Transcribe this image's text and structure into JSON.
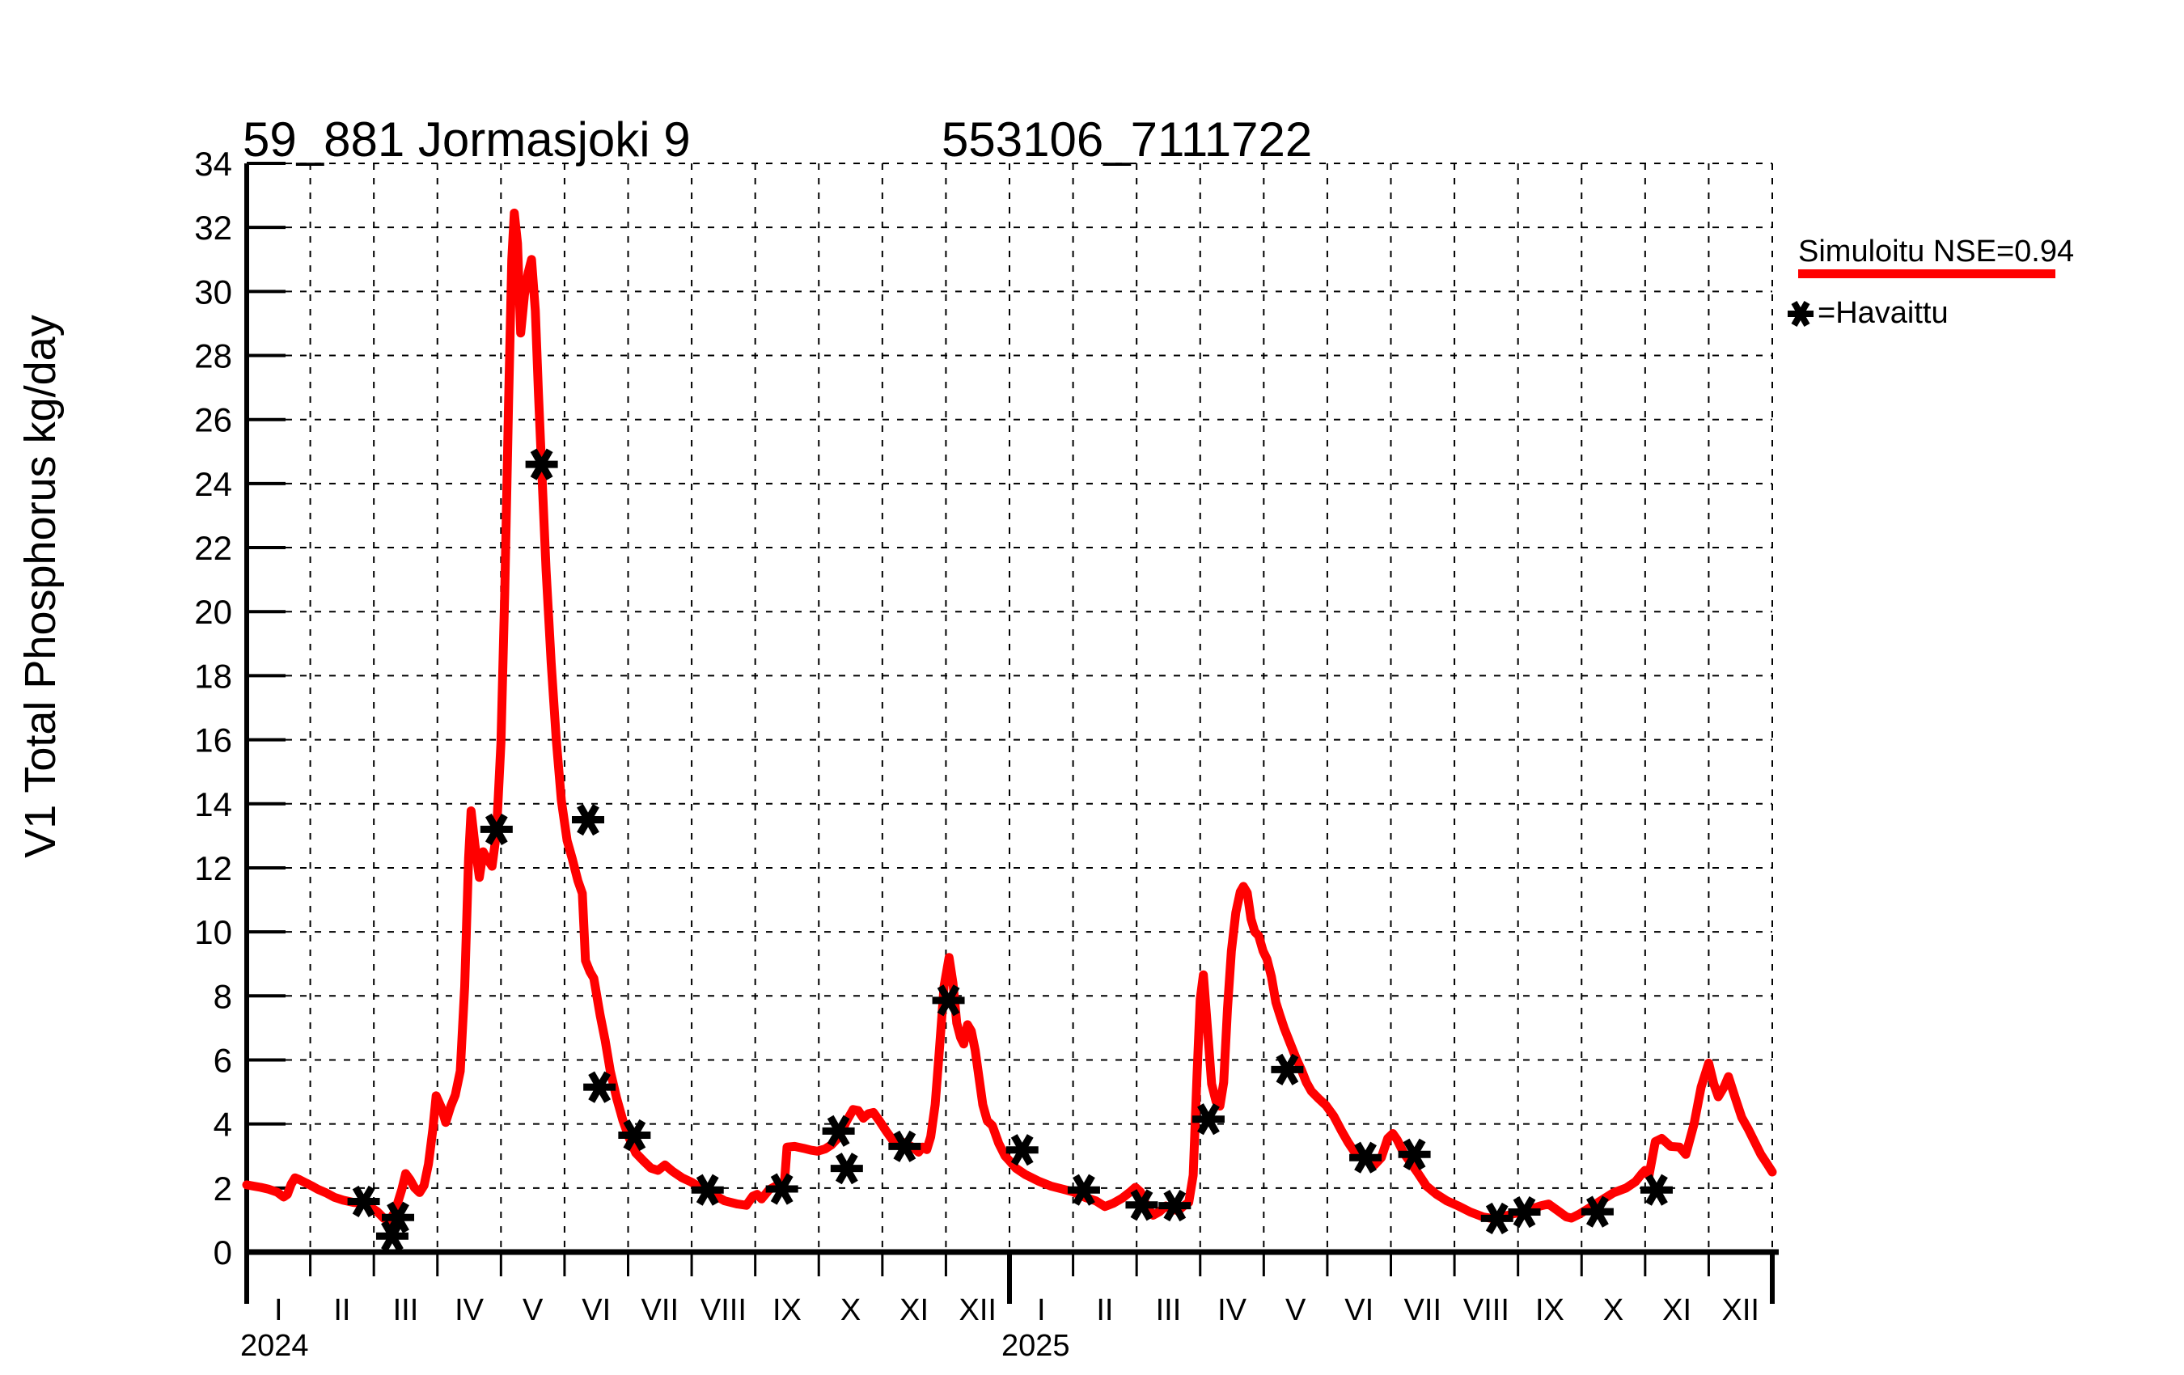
{
  "titles": {
    "station": "59_881 Jormasjoki 9",
    "coordinates": "553106_7111722"
  },
  "y_axis": {
    "label": "V1 Total Phosphorus kg/day",
    "ticks": [
      0,
      2,
      4,
      6,
      8,
      10,
      12,
      14,
      16,
      18,
      20,
      22,
      24,
      26,
      28,
      30,
      32,
      34
    ]
  },
  "x_axis": {
    "month_labels": [
      "I",
      "II",
      "III",
      "IV",
      "V",
      "VI",
      "VII",
      "VIII",
      "IX",
      "X",
      "XI",
      "XII"
    ],
    "years": [
      "2024",
      "2025"
    ]
  },
  "legend": {
    "simulated_label": "Simuloitu NSE=0.94",
    "observed_label": "=Havaittu",
    "simulated_color": "#ff0000",
    "observed_color": "#000000",
    "observed_marker": "asterisk"
  },
  "chart_data": {
    "type": "line",
    "title": "59_881 Jormasjoki 9  553106_7111722",
    "ylabel": "V1 Total Phosphorus kg/day",
    "xlabel": "months I-XII of 2024 and 2025",
    "ylim": [
      0,
      34
    ],
    "y_tick_step": 2,
    "x_months_range": [
      0,
      24
    ],
    "grid": true,
    "legend_position": "outside-right-top",
    "series": [
      {
        "name": "Simuloitu NSE=0.94",
        "type": "line",
        "color": "#ff0000",
        "points": [
          [
            0.0,
            2.1
          ],
          [
            0.1,
            2.06
          ],
          [
            0.22,
            2.02
          ],
          [
            0.35,
            1.96
          ],
          [
            0.48,
            1.87
          ],
          [
            0.58,
            1.72
          ],
          [
            0.64,
            1.8
          ],
          [
            0.7,
            2.12
          ],
          [
            0.76,
            2.32
          ],
          [
            0.83,
            2.26
          ],
          [
            0.92,
            2.17
          ],
          [
            1.02,
            2.07
          ],
          [
            1.12,
            1.96
          ],
          [
            1.25,
            1.85
          ],
          [
            1.38,
            1.71
          ],
          [
            1.52,
            1.62
          ],
          [
            1.68,
            1.55
          ],
          [
            1.84,
            1.52
          ],
          [
            1.95,
            1.4
          ],
          [
            2.05,
            1.27
          ],
          [
            2.16,
            1.05
          ],
          [
            2.25,
            1.0
          ],
          [
            2.33,
            1.25
          ],
          [
            2.44,
            1.95
          ],
          [
            2.5,
            2.45
          ],
          [
            2.57,
            2.26
          ],
          [
            2.64,
            2.01
          ],
          [
            2.72,
            1.86
          ],
          [
            2.79,
            2.08
          ],
          [
            2.86,
            2.75
          ],
          [
            2.93,
            3.85
          ],
          [
            2.98,
            4.88
          ],
          [
            3.06,
            4.52
          ],
          [
            3.13,
            4.05
          ],
          [
            3.21,
            4.56
          ],
          [
            3.28,
            4.9
          ],
          [
            3.36,
            5.65
          ],
          [
            3.43,
            8.3
          ],
          [
            3.49,
            12.3
          ],
          [
            3.53,
            13.78
          ],
          [
            3.59,
            12.72
          ],
          [
            3.66,
            11.7
          ],
          [
            3.72,
            12.5
          ],
          [
            3.79,
            12.26
          ],
          [
            3.86,
            12.05
          ],
          [
            3.93,
            13.1
          ],
          [
            4.0,
            15.9
          ],
          [
            4.06,
            20.6
          ],
          [
            4.12,
            26.6
          ],
          [
            4.17,
            31.0
          ],
          [
            4.21,
            32.45
          ],
          [
            4.26,
            31.5
          ],
          [
            4.31,
            28.7
          ],
          [
            4.37,
            29.9
          ],
          [
            4.43,
            30.6
          ],
          [
            4.48,
            31.0
          ],
          [
            4.54,
            29.4
          ],
          [
            4.59,
            26.8
          ],
          [
            4.64,
            24.5
          ],
          [
            4.71,
            21.3
          ],
          [
            4.79,
            18.4
          ],
          [
            4.87,
            16.0
          ],
          [
            4.95,
            14.1
          ],
          [
            5.04,
            12.85
          ],
          [
            5.12,
            12.3
          ],
          [
            5.21,
            11.6
          ],
          [
            5.28,
            11.2
          ],
          [
            5.33,
            9.1
          ],
          [
            5.4,
            8.75
          ],
          [
            5.46,
            8.55
          ],
          [
            5.56,
            7.4
          ],
          [
            5.64,
            6.6
          ],
          [
            5.72,
            5.65
          ],
          [
            5.82,
            4.8
          ],
          [
            5.92,
            4.1
          ],
          [
            6.01,
            3.6
          ],
          [
            6.12,
            3.1
          ],
          [
            6.24,
            2.85
          ],
          [
            6.36,
            2.62
          ],
          [
            6.47,
            2.55
          ],
          [
            6.58,
            2.72
          ],
          [
            6.7,
            2.52
          ],
          [
            6.85,
            2.32
          ],
          [
            7.0,
            2.18
          ],
          [
            7.16,
            1.98
          ],
          [
            7.32,
            1.82
          ],
          [
            7.52,
            1.6
          ],
          [
            7.72,
            1.5
          ],
          [
            7.86,
            1.46
          ],
          [
            7.96,
            1.74
          ],
          [
            8.03,
            1.8
          ],
          [
            8.1,
            1.66
          ],
          [
            8.22,
            1.95
          ],
          [
            8.36,
            2.1
          ],
          [
            8.46,
            2.16
          ],
          [
            8.5,
            3.28
          ],
          [
            8.62,
            3.3
          ],
          [
            8.76,
            3.24
          ],
          [
            8.88,
            3.18
          ],
          [
            8.98,
            3.15
          ],
          [
            9.1,
            3.22
          ],
          [
            9.2,
            3.35
          ],
          [
            9.32,
            3.6
          ],
          [
            9.44,
            4.1
          ],
          [
            9.54,
            4.45
          ],
          [
            9.62,
            4.42
          ],
          [
            9.7,
            4.18
          ],
          [
            9.78,
            4.32
          ],
          [
            9.86,
            4.36
          ],
          [
            9.96,
            4.08
          ],
          [
            10.06,
            3.78
          ],
          [
            10.16,
            3.5
          ],
          [
            10.26,
            3.32
          ],
          [
            10.33,
            3.42
          ],
          [
            10.41,
            3.34
          ],
          [
            10.49,
            3.26
          ],
          [
            10.57,
            3.12
          ],
          [
            10.63,
            3.28
          ],
          [
            10.7,
            3.2
          ],
          [
            10.76,
            3.6
          ],
          [
            10.83,
            4.6
          ],
          [
            10.9,
            6.4
          ],
          [
            10.97,
            8.3
          ],
          [
            11.05,
            9.2
          ],
          [
            11.11,
            8.4
          ],
          [
            11.17,
            7.15
          ],
          [
            11.23,
            6.7
          ],
          [
            11.28,
            6.5
          ],
          [
            11.34,
            7.1
          ],
          [
            11.4,
            6.9
          ],
          [
            11.46,
            6.3
          ],
          [
            11.52,
            5.45
          ],
          [
            11.58,
            4.6
          ],
          [
            11.65,
            4.1
          ],
          [
            11.73,
            3.95
          ],
          [
            11.83,
            3.4
          ],
          [
            11.93,
            3.0
          ],
          [
            12.0,
            2.85
          ],
          [
            12.1,
            2.62
          ],
          [
            12.25,
            2.42
          ],
          [
            12.45,
            2.22
          ],
          [
            12.65,
            2.06
          ],
          [
            12.85,
            1.96
          ],
          [
            13.0,
            1.88
          ],
          [
            13.2,
            1.7
          ],
          [
            13.36,
            1.6
          ],
          [
            13.5,
            1.42
          ],
          [
            13.63,
            1.52
          ],
          [
            13.77,
            1.68
          ],
          [
            13.9,
            1.88
          ],
          [
            13.98,
            2.02
          ],
          [
            14.06,
            1.88
          ],
          [
            14.16,
            1.42
          ],
          [
            14.26,
            1.15
          ],
          [
            14.36,
            1.26
          ],
          [
            14.46,
            1.44
          ],
          [
            14.56,
            1.32
          ],
          [
            14.66,
            1.3
          ],
          [
            14.74,
            1.44
          ],
          [
            14.82,
            1.55
          ],
          [
            14.89,
            2.4
          ],
          [
            14.95,
            5.5
          ],
          [
            15.0,
            7.9
          ],
          [
            15.05,
            8.66
          ],
          [
            15.11,
            7.1
          ],
          [
            15.18,
            5.25
          ],
          [
            15.25,
            4.7
          ],
          [
            15.31,
            4.56
          ],
          [
            15.37,
            5.3
          ],
          [
            15.43,
            7.6
          ],
          [
            15.49,
            9.4
          ],
          [
            15.56,
            10.6
          ],
          [
            15.63,
            11.25
          ],
          [
            15.68,
            11.42
          ],
          [
            15.74,
            11.22
          ],
          [
            15.8,
            10.4
          ],
          [
            15.86,
            10.0
          ],
          [
            15.92,
            9.88
          ],
          [
            15.99,
            9.4
          ],
          [
            16.05,
            9.15
          ],
          [
            16.12,
            8.6
          ],
          [
            16.19,
            7.8
          ],
          [
            16.25,
            7.42
          ],
          [
            16.32,
            7.0
          ],
          [
            16.42,
            6.5
          ],
          [
            16.52,
            6.0
          ],
          [
            16.59,
            5.7
          ],
          [
            16.67,
            5.3
          ],
          [
            16.75,
            5.02
          ],
          [
            16.86,
            4.8
          ],
          [
            16.98,
            4.58
          ],
          [
            17.1,
            4.25
          ],
          [
            17.22,
            3.8
          ],
          [
            17.33,
            3.42
          ],
          [
            17.43,
            3.12
          ],
          [
            17.53,
            2.98
          ],
          [
            17.63,
            2.9
          ],
          [
            17.74,
            2.72
          ],
          [
            17.85,
            2.95
          ],
          [
            17.95,
            3.55
          ],
          [
            18.03,
            3.7
          ],
          [
            18.1,
            3.5
          ],
          [
            18.2,
            3.1
          ],
          [
            18.3,
            2.82
          ],
          [
            18.42,
            2.48
          ],
          [
            18.56,
            2.06
          ],
          [
            18.72,
            1.8
          ],
          [
            18.88,
            1.6
          ],
          [
            19.05,
            1.45
          ],
          [
            19.25,
            1.25
          ],
          [
            19.45,
            1.1
          ],
          [
            19.62,
            1.04
          ],
          [
            19.78,
            1.12
          ],
          [
            19.98,
            1.22
          ],
          [
            20.15,
            1.3
          ],
          [
            20.35,
            1.44
          ],
          [
            20.48,
            1.5
          ],
          [
            20.62,
            1.3
          ],
          [
            20.76,
            1.1
          ],
          [
            20.84,
            1.06
          ],
          [
            20.96,
            1.18
          ],
          [
            21.1,
            1.35
          ],
          [
            21.3,
            1.6
          ],
          [
            21.5,
            1.85
          ],
          [
            21.7,
            2.0
          ],
          [
            21.85,
            2.2
          ],
          [
            21.95,
            2.45
          ],
          [
            22.0,
            2.55
          ],
          [
            22.06,
            2.38
          ],
          [
            22.16,
            3.45
          ],
          [
            22.26,
            3.55
          ],
          [
            22.4,
            3.3
          ],
          [
            22.54,
            3.28
          ],
          [
            22.64,
            3.05
          ],
          [
            22.77,
            4.0
          ],
          [
            22.88,
            5.15
          ],
          [
            23.0,
            5.9
          ],
          [
            23.08,
            5.25
          ],
          [
            23.15,
            4.85
          ],
          [
            23.24,
            5.15
          ],
          [
            23.31,
            5.48
          ],
          [
            23.42,
            4.8
          ],
          [
            23.52,
            4.2
          ],
          [
            23.62,
            3.85
          ],
          [
            23.72,
            3.45
          ],
          [
            23.82,
            3.05
          ],
          [
            23.92,
            2.75
          ],
          [
            24.0,
            2.5
          ]
        ]
      },
      {
        "name": "Havaittu",
        "type": "scatter",
        "marker": "asterisk",
        "color": "#000000",
        "points": [
          [
            1.84,
            1.58
          ],
          [
            2.29,
            0.5
          ],
          [
            2.38,
            1.08
          ],
          [
            3.93,
            13.2
          ],
          [
            4.64,
            24.6
          ],
          [
            5.37,
            13.5
          ],
          [
            5.55,
            5.15
          ],
          [
            6.1,
            3.65
          ],
          [
            7.25,
            1.94
          ],
          [
            8.42,
            1.97
          ],
          [
            9.31,
            3.78
          ],
          [
            9.44,
            2.61
          ],
          [
            10.35,
            3.3
          ],
          [
            11.04,
            7.86
          ],
          [
            12.2,
            3.19
          ],
          [
            13.17,
            1.94
          ],
          [
            14.08,
            1.47
          ],
          [
            14.6,
            1.45
          ],
          [
            15.13,
            4.15
          ],
          [
            16.37,
            5.7
          ],
          [
            17.6,
            2.95
          ],
          [
            18.37,
            3.05
          ],
          [
            19.67,
            1.05
          ],
          [
            20.1,
            1.25
          ],
          [
            21.25,
            1.26
          ],
          [
            22.18,
            1.94
          ]
        ]
      }
    ]
  }
}
